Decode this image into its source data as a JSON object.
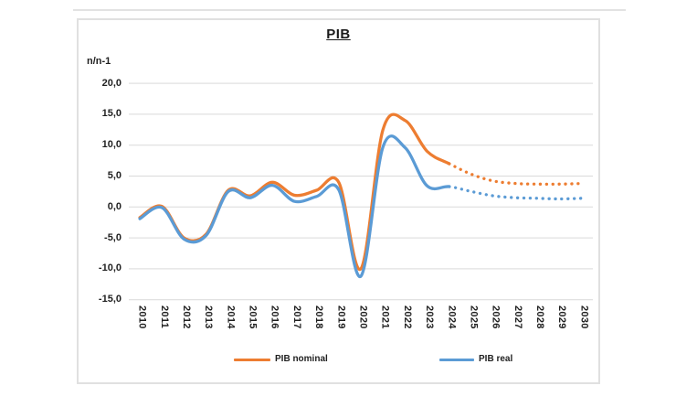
{
  "chart": {
    "title": "PIB",
    "y_axis_label": "n/n-1",
    "y_ticks": [
      "20,0",
      "15,0",
      "10,0",
      "5,0",
      "0,0",
      "-5,0",
      "-10,0",
      "-15,0"
    ],
    "legend": [
      {
        "label": "PIB nominal",
        "color": "#ED7D31"
      },
      {
        "label": "PIB real",
        "color": "#5B9BD5"
      }
    ]
  },
  "chart_data": {
    "type": "line",
    "title": "PIB",
    "xlabel": "",
    "ylabel": "n/n-1",
    "categories": [
      2010,
      2011,
      2012,
      2013,
      2014,
      2015,
      2016,
      2017,
      2018,
      2019,
      2020,
      2021,
      2022,
      2023,
      2024,
      2025,
      2026,
      2027,
      2028,
      2029,
      2030
    ],
    "series": [
      {
        "name": "PIB nominal",
        "color": "#ED7D31",
        "values": [
          -1.7,
          0.1,
          -5.0,
          -4.4,
          2.7,
          1.8,
          4.0,
          1.9,
          2.7,
          4.0,
          -10.0,
          12.5,
          14.0,
          9.0,
          7.0,
          5.3,
          4.2,
          3.8,
          3.7,
          3.7,
          3.8
        ]
      },
      {
        "name": "PIB real",
        "color": "#5B9BD5",
        "values": [
          -1.9,
          -0.1,
          -5.2,
          -4.6,
          2.5,
          1.5,
          3.5,
          0.9,
          1.7,
          2.8,
          -11.2,
          9.7,
          9.6,
          3.4,
          3.3,
          2.5,
          1.8,
          1.5,
          1.4,
          1.3,
          1.4
        ]
      }
    ],
    "solid_through_year": 2024,
    "forecast_dotted_from_year": 2025,
    "ylim": [
      -15,
      20
    ],
    "y_tick_step": 5,
    "grid": true,
    "x_labels_rotated_vertical": true,
    "line_style_actual": "solid",
    "line_style_forecast": "dotted",
    "legend_position": "bottom"
  }
}
